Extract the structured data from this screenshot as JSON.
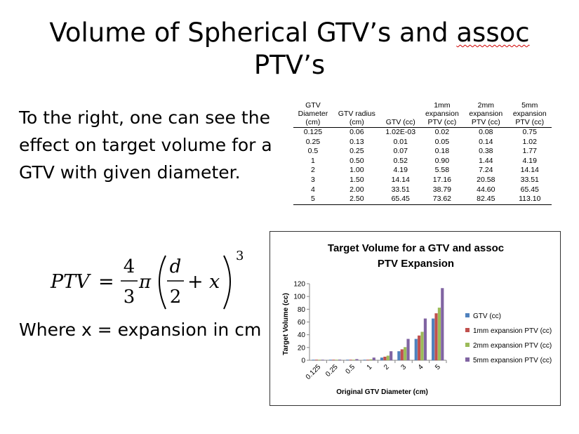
{
  "slide": {
    "title_line1_prefix": "Volume of Spherical GTV’s and ",
    "title_line1_squiggle": "assoc",
    "title_line2": "PTV’s",
    "body_text": "To the right, one can see the effect on target volume for a GTV with given diameter.",
    "where_text": "Where x = expansion in cm"
  },
  "formula": {
    "lhs": "PTV",
    "eq": "=",
    "frac1_num": "4",
    "frac1_den": "3",
    "pi": "π",
    "frac2_num": "d",
    "frac2_den": "2",
    "plus": "+",
    "var_x": "x",
    "exponent": "3"
  },
  "table": {
    "headers": [
      [
        "GTV",
        "Diameter",
        "(cm)"
      ],
      [
        "GTV radius",
        "(cm)"
      ],
      [
        "GTV (cc)"
      ],
      [
        "1mm",
        "expansion",
        "PTV (cc)"
      ],
      [
        "2mm",
        "expansion",
        "PTV (cc)"
      ],
      [
        "5mm",
        "expansion",
        "PTV (cc)"
      ]
    ],
    "rows": [
      [
        "0.125",
        "0.06",
        "1.02E-03",
        "0.02",
        "0.08",
        "0.75"
      ],
      [
        "0.25",
        "0.13",
        "0.01",
        "0.05",
        "0.14",
        "1.02"
      ],
      [
        "0.5",
        "0.25",
        "0.07",
        "0.18",
        "0.38",
        "1.77"
      ],
      [
        "1",
        "0.50",
        "0.52",
        "0.90",
        "1.44",
        "4.19"
      ],
      [
        "2",
        "1.00",
        "4.19",
        "5.58",
        "7.24",
        "14.14"
      ],
      [
        "3",
        "1.50",
        "14.14",
        "17.16",
        "20.58",
        "33.51"
      ],
      [
        "4",
        "2.00",
        "33.51",
        "38.79",
        "44.60",
        "65.45"
      ],
      [
        "5",
        "2.50",
        "65.45",
        "73.62",
        "82.45",
        "113.10"
      ]
    ]
  },
  "chart_data": {
    "type": "bar",
    "title_line1": "Target Volume for a GTV and assoc",
    "title_line2": "PTV Expansion",
    "xlabel": "Original GTV Diameter (cm)",
    "ylabel": "Target Volume (cc)",
    "categories": [
      "0.125",
      "0.25",
      "0.5",
      "1",
      "2",
      "3",
      "4",
      "5"
    ],
    "ylim": [
      0,
      120
    ],
    "yticks": [
      0,
      20,
      40,
      60,
      80,
      100,
      120
    ],
    "grid": false,
    "legend_position": "right",
    "series": [
      {
        "name": "GTV (cc)",
        "color": "#4f81bd",
        "values": [
          0.00102,
          0.01,
          0.07,
          0.52,
          4.19,
          14.14,
          33.51,
          65.45
        ]
      },
      {
        "name": "1mm expansion PTV (cc)",
        "color": "#c0504d",
        "values": [
          0.02,
          0.05,
          0.18,
          0.9,
          5.58,
          17.16,
          38.79,
          73.62
        ]
      },
      {
        "name": "2mm expansion PTV (cc)",
        "color": "#9bbb59",
        "values": [
          0.08,
          0.14,
          0.38,
          1.44,
          7.24,
          20.58,
          44.6,
          82.45
        ]
      },
      {
        "name": "5mm expansion PTV (cc)",
        "color": "#8064a2",
        "values": [
          0.75,
          1.02,
          1.77,
          4.19,
          14.14,
          33.51,
          65.45,
          113.1
        ]
      }
    ]
  }
}
